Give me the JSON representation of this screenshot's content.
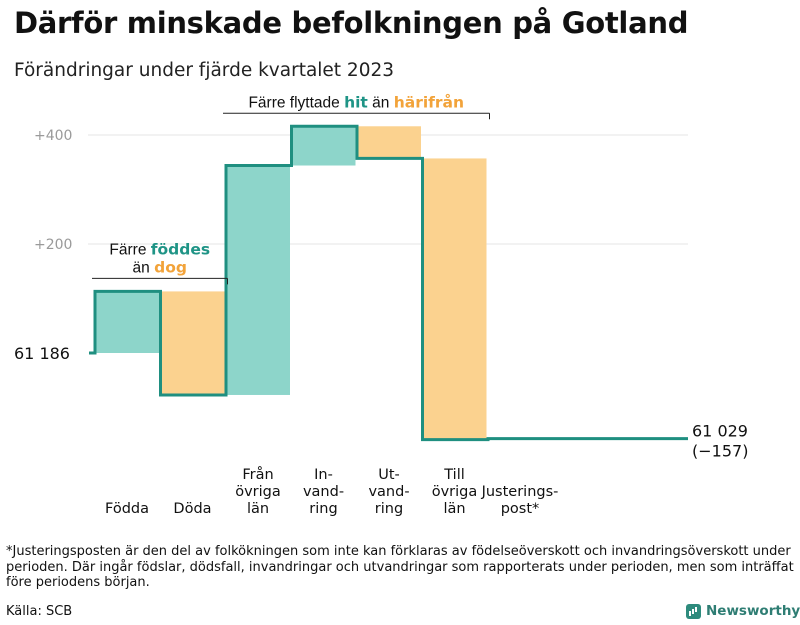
{
  "header": {
    "title": "Därför minskade befolkningen på Gotland",
    "subtitle": "Förändringar under fjärde kvartalet 2023"
  },
  "footer": {
    "footnote": "*Justeringsposten är den del av folkökningen som inte kan förklaras av födelseöverskott och invandringsöverskott under perioden. Där ingår födslar, dödsfall, invandringar och utvandringar som rapporterats under perioden, men som inträffat före periodens början.",
    "source": "Källa: SCB",
    "brand": "Newsworthy"
  },
  "colors": {
    "increase": "#8dd5ca",
    "decrease": "#fbd28f",
    "line": "#1f8f80",
    "teal_text": "#1f9486",
    "orange_text": "#f2a33a",
    "grid": "#e6e6e6",
    "axis_label": "#9a9a9a"
  },
  "chart_data": {
    "type": "waterfall",
    "start_value": 61186,
    "start_label": "61  186",
    "end_value": 61029,
    "end_label_value": "61 029",
    "end_label_change": "(−157)",
    "y_ticks": [
      {
        "value": 200,
        "label": "+200"
      },
      {
        "value": 400,
        "label": "+400"
      }
    ],
    "ylim": [
      -180,
      430
    ],
    "grid": true,
    "steps": [
      {
        "label": [
          "Födda"
        ],
        "change": 113,
        "kind": "increase"
      },
      {
        "label": [
          "Döda"
        ],
        "change": -190,
        "kind": "decrease"
      },
      {
        "label": [
          "Från",
          "övriga",
          "län"
        ],
        "change": 421,
        "kind": "increase"
      },
      {
        "label": [
          "In-",
          "vand-",
          "ring"
        ],
        "change": 72,
        "kind": "increase"
      },
      {
        "label": [
          "Ut-",
          "vand-",
          "ring"
        ],
        "change": -59,
        "kind": "decrease"
      },
      {
        "label": [
          "Till",
          "övriga",
          "län"
        ],
        "change": -516,
        "kind": "decrease"
      },
      {
        "label": [
          "Justerings-",
          "post*"
        ],
        "change": 2,
        "kind": "increase"
      }
    ],
    "annotations": [
      {
        "id": "birth",
        "steps": [
          0,
          1
        ],
        "lines": [
          [
            {
              "text": "Färre ",
              "style": "plain"
            },
            {
              "text": "föddes",
              "style": "teal"
            }
          ],
          [
            {
              "text": "än ",
              "style": "plain"
            },
            {
              "text": "dog",
              "style": "orange"
            }
          ]
        ]
      },
      {
        "id": "migration",
        "steps": [
          2,
          5
        ],
        "lines": [
          [
            {
              "text": "Färre flyttade ",
              "style": "plain"
            },
            {
              "text": "hit",
              "style": "teal"
            },
            {
              "text": " än ",
              "style": "plain"
            },
            {
              "text": "härifrån",
              "style": "orange"
            }
          ]
        ]
      }
    ]
  }
}
